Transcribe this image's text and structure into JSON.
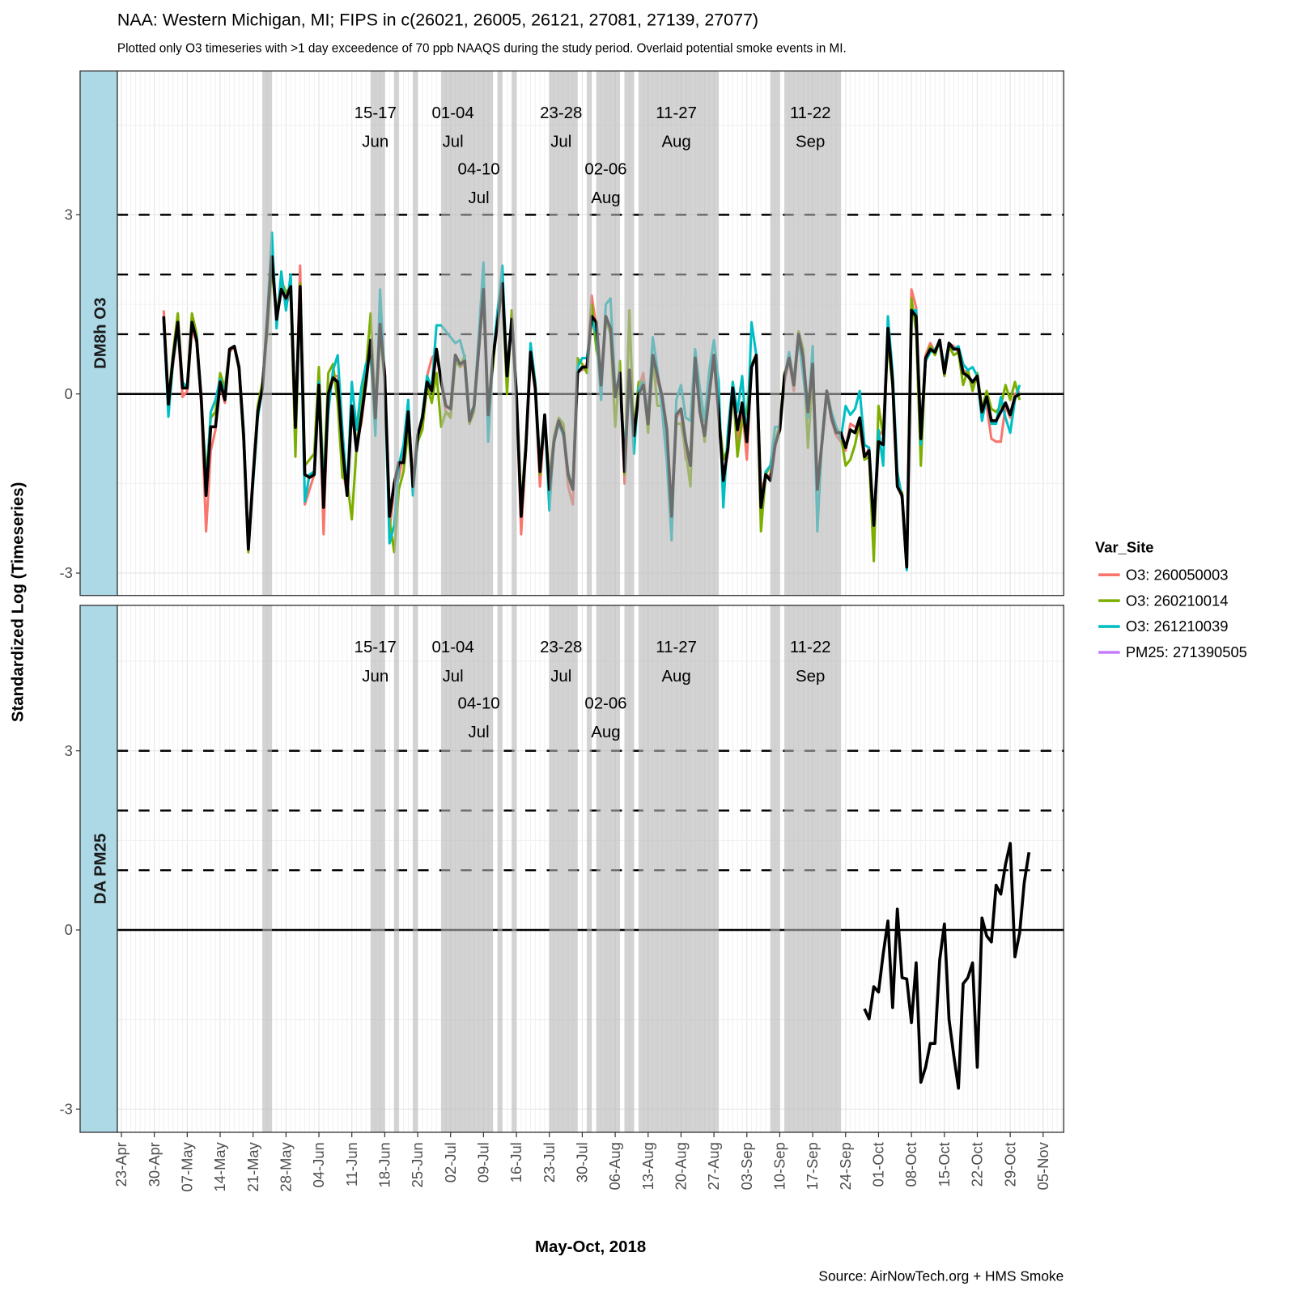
{
  "chart_data": {
    "type": "line",
    "title": "NAA: Western Michigan, MI; FIPS in c(26021, 26005, 26121, 27081, 27139, 27077)",
    "subtitle": "Plotted only O3 timeseries with >1 day exceedence of 70 ppb NAAQS during the study period. Overlaid potential smoke events in MI.",
    "xlabel": "May-Oct, 2018",
    "ylabel": "Standardized Log (Timeseries)",
    "caption": "Source: AirNowTech.org + HMS Smoke",
    "x_origin_date": "2018-04-23",
    "x_ticks": [
      "23-Apr",
      "30-Apr",
      "07-May",
      "14-May",
      "21-May",
      "28-May",
      "04-Jun",
      "11-Jun",
      "18-Jun",
      "25-Jun",
      "02-Jul",
      "09-Jul",
      "16-Jul",
      "23-Jul",
      "30-Jul",
      "06-Aug",
      "13-Aug",
      "20-Aug",
      "27-Aug",
      "03-Sep",
      "10-Sep",
      "17-Sep",
      "24-Sep",
      "01-Oct",
      "08-Oct",
      "15-Oct",
      "22-Oct",
      "29-Oct",
      "05-Nov"
    ],
    "x_tick_step_days": 7,
    "y_ticks": [
      -3,
      0,
      3
    ],
    "ylim": [
      -3.37,
      5.41
    ],
    "reference_lines": {
      "solid": [
        0
      ],
      "dashed": [
        1,
        2,
        3
      ]
    },
    "grid": true,
    "legend": {
      "title": "Var_Site",
      "position": "right",
      "entries": [
        {
          "label": "O3: 260050003",
          "color": "#F8766D"
        },
        {
          "label": "O3: 260210014",
          "color": "#7CAE00"
        },
        {
          "label": "O3: 261210039",
          "color": "#00BFC4"
        },
        {
          "label": "PM25: 271390505",
          "color": "#C77CFF"
        }
      ]
    },
    "smoke_event_color": "#b6b6b6",
    "smoke_bands": [
      {
        "start": "2018-05-23",
        "end": "2018-05-24"
      },
      {
        "start": "2018-06-15",
        "end": "2018-06-17",
        "label_top": "15-17",
        "label_bottom": "Jun"
      },
      {
        "start": "2018-06-20",
        "end": "2018-06-20"
      },
      {
        "start": "2018-06-24",
        "end": "2018-06-24"
      },
      {
        "start": "2018-06-30",
        "end": "2018-07-04",
        "label_top": "01-04",
        "label_bottom": "Jul",
        "label_start": "2018-07-01"
      },
      {
        "start": "2018-07-05",
        "end": "2018-07-10",
        "label_top": "04-10",
        "label_bottom": "Jul",
        "label_start": "2018-07-06"
      },
      {
        "start": "2018-07-12",
        "end": "2018-07-12"
      },
      {
        "start": "2018-07-15",
        "end": "2018-07-15"
      },
      {
        "start": "2018-07-23",
        "end": "2018-07-28",
        "label_top": "23-28",
        "label_bottom": "Jul"
      },
      {
        "start": "2018-07-31",
        "end": "2018-07-31"
      },
      {
        "start": "2018-08-02",
        "end": "2018-08-06",
        "label_top": "02-06",
        "label_bottom": "Aug"
      },
      {
        "start": "2018-08-08",
        "end": "2018-08-09"
      },
      {
        "start": "2018-08-11",
        "end": "2018-08-27",
        "label_top": "11-27",
        "label_bottom": "Aug"
      },
      {
        "start": "2018-09-08",
        "end": "2018-09-09"
      },
      {
        "start": "2018-09-11",
        "end": "2018-09-22",
        "label_top": "11-22",
        "label_bottom": "Sep"
      }
    ],
    "panels": [
      {
        "strip": "DM8h O3",
        "series": [
          {
            "name": "O3: 260050003",
            "color": "#F8766D",
            "x_start": "2018-05-02",
            "values": [
              1.4,
              -0.1,
              0.5,
              1.1,
              -0.05,
              0.05,
              1.1,
              0.85,
              -0.2,
              -2.3,
              -0.95,
              -0.6,
              0.15,
              -0.15,
              0.7,
              0.8,
              0.45,
              -0.75,
              -2.5,
              -1.3,
              -0.3,
              0.15,
              1.2,
              2.2,
              1.3,
              1.8,
              1.5,
              1.7,
              -0.5,
              2.15,
              -1.85,
              -1.6,
              -1.35,
              0.2,
              -2.35,
              0.05,
              0.3,
              0.3,
              -1.2,
              -1.7,
              -0.3,
              -0.8,
              -0.5,
              0.15,
              0.8,
              -0.3,
              1.1,
              0.4,
              -2.3,
              -1.6,
              -1.4,
              -1.0,
              -0.3,
              -1.5,
              -0.8,
              -0.5,
              0.3,
              0.6,
              0.7,
              0.2,
              -0.3,
              -0.35,
              0.6,
              0.45,
              0.5,
              -0.5,
              -0.2,
              0.7,
              1.7,
              -0.3,
              0.55,
              1.15,
              1.8,
              0.2,
              1.2,
              0.0,
              -2.35,
              -0.95,
              0.6,
              0.05,
              -1.55,
              -0.4,
              -1.6,
              -0.8,
              -0.45,
              -0.6,
              -1.55,
              -1.85,
              0.4,
              0.4,
              0.5,
              1.65,
              1.1,
              0.2,
              1.3,
              1.0,
              0.0,
              0.3,
              -1.5,
              0.35,
              -0.8,
              0.1,
              0.35,
              -0.4,
              0.6,
              0.2,
              0.0,
              -0.7,
              -1.9,
              -0.4,
              -0.3,
              -1.1,
              -1.0,
              0.5,
              -0.2,
              -0.8,
              0.1,
              0.6,
              -0.4,
              -1.4,
              -0.95,
              0.1,
              -0.85,
              -0.2,
              -1.1,
              0.5,
              0.6,
              -1.6,
              -1.4,
              -1.35,
              -0.9,
              -0.55,
              0.2,
              0.55,
              0.05,
              0.95,
              0.55,
              -0.4,
              0.45,
              -1.5,
              -0.75,
              0.0,
              -0.45,
              -0.7,
              -0.8,
              -0.95,
              -0.5,
              -0.55,
              -0.6,
              -1.1,
              -0.9,
              -2.3,
              -0.7,
              -0.6,
              1.0,
              0.3,
              -1.5,
              -1.75,
              -2.85,
              1.75,
              1.45,
              -0.7,
              0.65,
              0.85,
              0.7,
              0.9,
              0.4,
              0.85,
              0.8,
              0.7,
              0.4,
              0.35,
              0.1,
              0.3,
              -0.3,
              -0.2,
              -0.75,
              -0.8,
              -0.8,
              -0.2,
              -0.4,
              0.0,
              0.05
            ]
          },
          {
            "name": "O3: 260210014",
            "color": "#7CAE00",
            "x_start": "2018-05-02",
            "values": [
              1.2,
              -0.1,
              0.7,
              1.35,
              0.15,
              0.15,
              1.35,
              1.0,
              -0.1,
              -1.4,
              -0.4,
              -0.3,
              0.35,
              0.1,
              0.75,
              0.8,
              0.4,
              -0.8,
              -2.65,
              -1.4,
              -0.2,
              0.2,
              1.0,
              2.1,
              1.3,
              1.9,
              1.7,
              1.8,
              -1.05,
              1.85,
              -1.2,
              -1.1,
              -1.0,
              0.45,
              -1.6,
              0.35,
              0.5,
              -0.15,
              -1.4,
              -1.45,
              -2.1,
              -0.9,
              -0.2,
              0.4,
              1.35,
              -0.3,
              1.0,
              0.2,
              -2.1,
              -2.65,
              -1.6,
              -1.3,
              -0.6,
              -1.5,
              -0.8,
              -0.6,
              0.15,
              -0.15,
              0.35,
              -0.55,
              -0.3,
              -0.4,
              0.55,
              0.45,
              0.65,
              -0.5,
              -0.3,
              0.85,
              1.65,
              -0.2,
              0.45,
              1.3,
              1.75,
              0.0,
              1.4,
              0.05,
              -1.9,
              -0.8,
              0.6,
              0.1,
              -1.35,
              -0.4,
              -1.45,
              -0.7,
              -0.4,
              -0.5,
              -1.4,
              -1.6,
              0.6,
              0.5,
              0.35,
              1.5,
              0.75,
              0.3,
              1.25,
              1.0,
              -0.55,
              0.55,
              -1.35,
              1.4,
              -0.65,
              0.2,
              0.2,
              -0.65,
              0.6,
              -0.2,
              -0.2,
              -0.7,
              -2.0,
              -0.5,
              -0.5,
              -0.95,
              -1.55,
              0.6,
              -0.1,
              -0.8,
              0.0,
              0.6,
              -0.3,
              -1.1,
              -0.9,
              0.2,
              -1.05,
              -0.45,
              -0.3,
              0.5,
              0.65,
              -2.3,
              -1.35,
              -1.2,
              -0.8,
              -0.5,
              0.35,
              0.55,
              0.2,
              1.05,
              0.75,
              -0.9,
              0.3,
              -1.55,
              -0.75,
              0.05,
              -0.35,
              -0.55,
              -0.7,
              -1.2,
              -1.1,
              -0.85,
              -0.45,
              -1.1,
              -1.05,
              -2.8,
              -0.2,
              -0.7,
              0.9,
              0.1,
              -1.55,
              -1.65,
              -2.8,
              1.6,
              1.05,
              -1.2,
              0.6,
              0.8,
              0.65,
              0.9,
              0.3,
              0.8,
              0.65,
              0.7,
              0.15,
              0.4,
              0.05,
              0.35,
              -0.25,
              0.05,
              -0.25,
              -0.3,
              -0.2,
              0.15,
              -0.1,
              0.2,
              -0.1
            ]
          },
          {
            "name": "O3: 261210039",
            "color": "#00BFC4",
            "x_start": "2018-05-02",
            "values": [
              1.25,
              -0.38,
              0.55,
              1.1,
              0.2,
              0.1,
              1.15,
              0.95,
              -0.1,
              -1.55,
              -0.3,
              -0.1,
              0.25,
              0.0,
              0.75,
              0.8,
              0.45,
              -0.6,
              -2.5,
              -1.5,
              -0.4,
              0.1,
              1.3,
              2.7,
              1.1,
              2.05,
              1.4,
              2.0,
              -0.5,
              1.75,
              -1.8,
              -1.35,
              -1.3,
              0.2,
              -1.55,
              -0.3,
              0.4,
              0.65,
              -0.6,
              -1.65,
              0.2,
              -0.6,
              0.1,
              0.5,
              0.65,
              -0.7,
              1.75,
              0.2,
              -2.5,
              -2.2,
              -1.2,
              -0.85,
              -0.1,
              -1.7,
              -0.75,
              -0.35,
              0.3,
              0.1,
              1.15,
              1.15,
              1.05,
              0.95,
              0.85,
              0.9,
              0.6,
              -0.35,
              -0.2,
              1.0,
              2.2,
              -0.8,
              0.6,
              1.4,
              2.15,
              0.3,
              1.2,
              -0.1,
              -1.9,
              -0.95,
              0.85,
              0.2,
              -1.2,
              -0.35,
              -1.95,
              -0.75,
              -0.5,
              -0.7,
              -1.3,
              -1.6,
              0.45,
              0.6,
              0.6,
              1.25,
              1.0,
              -0.1,
              1.5,
              1.6,
              0.1,
              0.2,
              -1.0,
              0.3,
              -1.0,
              0.1,
              0.2,
              -0.4,
              0.95,
              0.4,
              -0.3,
              -1.15,
              -2.45,
              -0.1,
              0.15,
              -0.4,
              -0.45,
              0.75,
              0.1,
              -0.45,
              0.4,
              0.9,
              0.2,
              -1.9,
              -0.6,
              0.2,
              -0.3,
              0.3,
              -0.8,
              1.2,
              0.65,
              -1.9,
              -1.3,
              -1.2,
              -0.55,
              -0.55,
              0.3,
              0.7,
              0.2,
              0.95,
              0.3,
              -0.4,
              0.8,
              -2.3,
              -0.7,
              0.05,
              -0.3,
              -0.55,
              -0.75,
              -0.2,
              -0.35,
              -0.25,
              0.05,
              -0.85,
              -0.9,
              -2.2,
              -0.6,
              -1.2,
              1.3,
              0.35,
              -1.3,
              -1.75,
              -2.95,
              1.4,
              1.4,
              -0.85,
              0.55,
              0.7,
              0.75,
              0.85,
              0.45,
              0.85,
              0.75,
              0.8,
              0.5,
              0.4,
              0.45,
              0.3,
              -0.45,
              -0.05,
              -0.5,
              -0.5,
              -0.05,
              -0.4,
              -0.65,
              -0.1,
              0.15
            ]
          },
          {
            "name": "",
            "color": "#000000",
            "x_start": "2018-05-02",
            "values": [
              1.3,
              -0.17,
              0.6,
              1.2,
              0.1,
              0.1,
              1.2,
              0.9,
              -0.1,
              -1.7,
              -0.55,
              -0.55,
              0.2,
              -0.1,
              0.75,
              0.8,
              0.45,
              -0.7,
              -2.6,
              -1.4,
              -0.3,
              0.1,
              1.2,
              2.3,
              1.25,
              1.75,
              1.6,
              1.8,
              -0.56,
              1.8,
              -1.35,
              -1.4,
              -1.35,
              0.15,
              -1.9,
              0.0,
              0.27,
              0.2,
              -0.9,
              -1.7,
              -0.2,
              -0.95,
              -0.4,
              0.2,
              0.9,
              -0.4,
              1.17,
              0.3,
              -2.05,
              -1.5,
              -1.15,
              -1.15,
              -0.3,
              -1.55,
              -0.7,
              -0.4,
              0.2,
              0.05,
              0.75,
              0.2,
              -0.2,
              -0.25,
              0.65,
              0.5,
              0.55,
              -0.45,
              -0.2,
              0.75,
              1.75,
              -0.35,
              0.6,
              1.2,
              1.85,
              0.3,
              1.25,
              0.0,
              -2.05,
              -0.9,
              0.7,
              0.1,
              -1.3,
              -0.35,
              -1.6,
              -0.8,
              -0.45,
              -0.65,
              -1.35,
              -1.6,
              0.35,
              0.45,
              0.45,
              1.3,
              1.2,
              0.15,
              1.3,
              1.1,
              -0.05,
              0.35,
              -1.3,
              0.4,
              -0.7,
              0.0,
              0.15,
              -0.5,
              0.65,
              0.3,
              -0.05,
              -0.6,
              -2.05,
              -0.35,
              -0.25,
              -0.8,
              -1.2,
              0.6,
              -0.3,
              -0.7,
              0.0,
              0.65,
              -0.3,
              -1.45,
              -0.9,
              0.1,
              -0.6,
              -0.15,
              -0.8,
              0.45,
              0.65,
              -1.9,
              -1.35,
              -1.45,
              -0.85,
              -0.6,
              0.3,
              0.6,
              0.15,
              1.0,
              0.6,
              -0.3,
              0.5,
              -1.6,
              -0.8,
              0.05,
              -0.4,
              -0.65,
              -0.65,
              -0.9,
              -0.6,
              -0.65,
              -0.4,
              -1.05,
              -0.95,
              -2.2,
              -0.8,
              -0.85,
              1.1,
              0.2,
              -1.55,
              -1.7,
              -2.9,
              1.4,
              1.3,
              -0.75,
              0.6,
              0.75,
              0.7,
              0.9,
              0.35,
              0.85,
              0.75,
              0.75,
              0.35,
              0.3,
              0.2,
              0.3,
              -0.3,
              -0.05,
              -0.45,
              -0.45,
              -0.3,
              -0.15,
              -0.35,
              -0.05,
              0.0
            ]
          }
        ]
      },
      {
        "strip": "DA PM25",
        "series": [
          {
            "name": "",
            "color": "#000000",
            "x_start": "2018-09-28",
            "values": [
              -1.32,
              -1.49,
              -0.95,
              -1.04,
              -0.4,
              0.15,
              -1.3,
              0.35,
              -0.8,
              -0.82,
              -1.55,
              -0.55,
              -2.55,
              -2.3,
              -1.9,
              -1.9,
              -0.5,
              0.1,
              -1.5,
              -2.1,
              -2.65,
              -0.9,
              -0.8,
              -0.55,
              -2.3,
              0.2,
              -0.1,
              -0.2,
              0.75,
              0.6,
              1.1,
              1.45,
              -0.45,
              -0.05,
              0.8,
              1.3
            ]
          }
        ]
      }
    ]
  }
}
